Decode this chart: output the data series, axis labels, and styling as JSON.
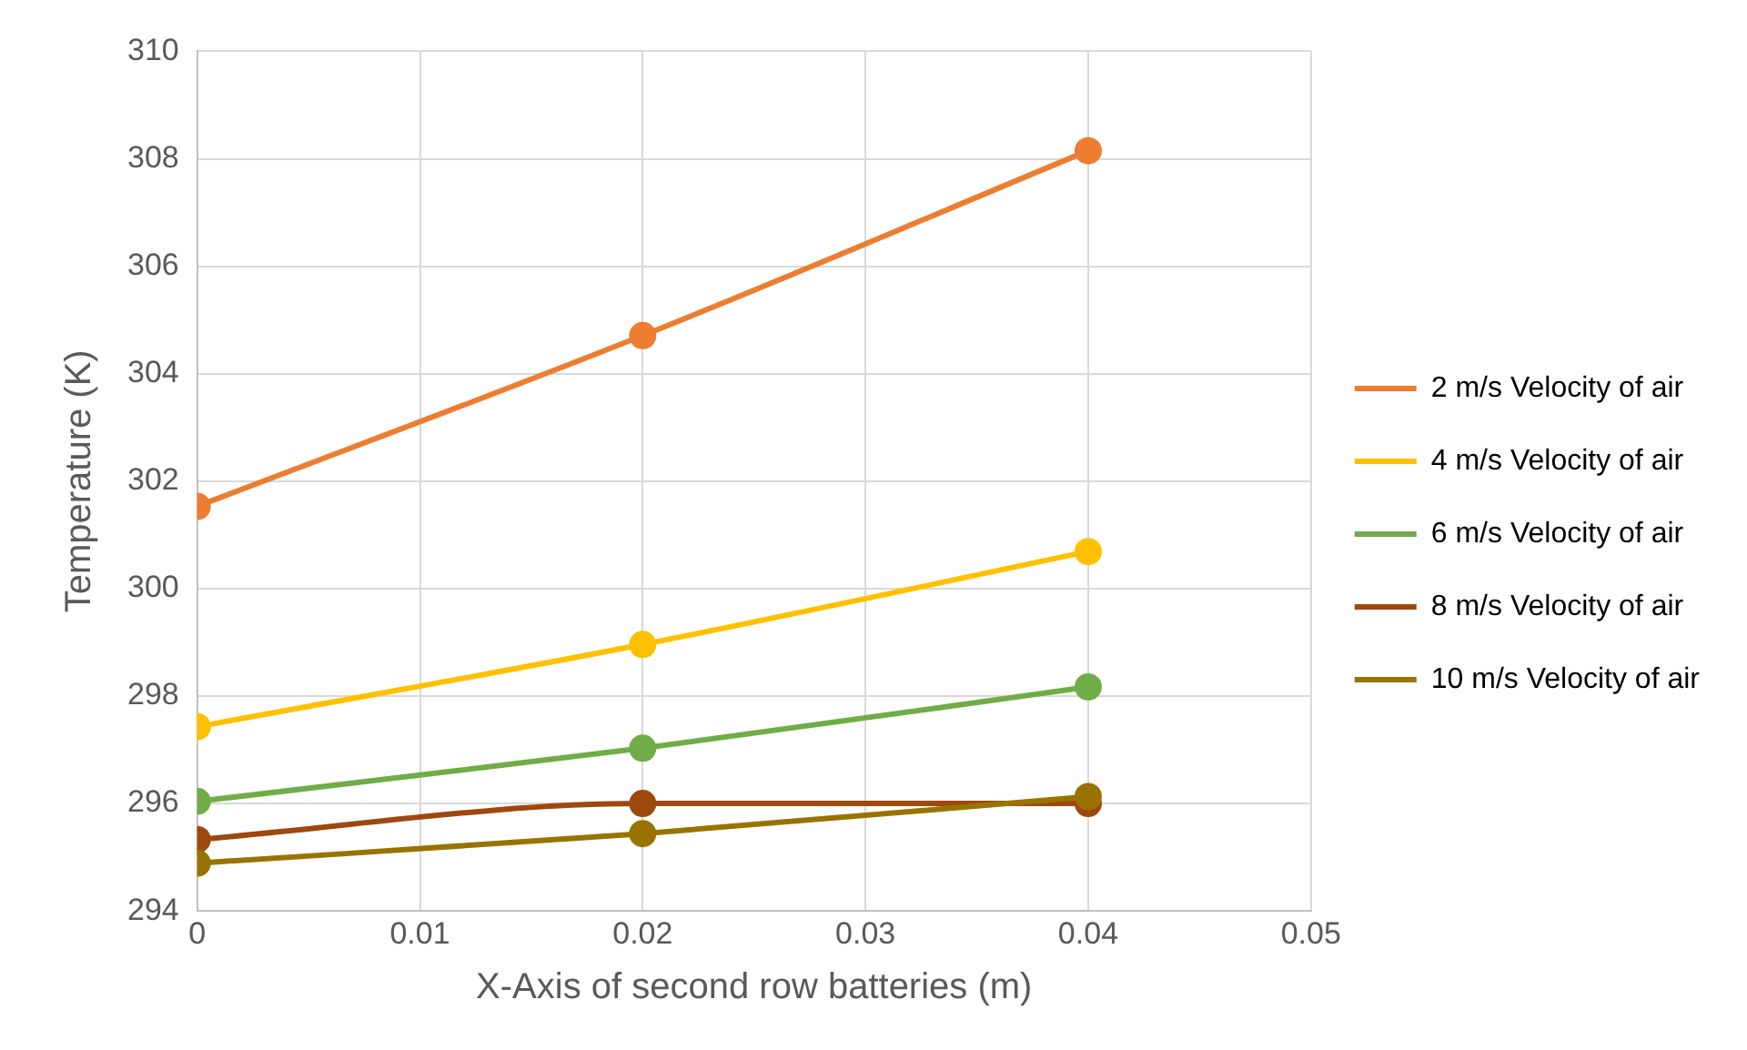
{
  "chart_data": {
    "type": "line",
    "xlabel": "X-Axis of second row batteries (m)",
    "ylabel": "Temperature (K)",
    "x": [
      0,
      0.02,
      0.04
    ],
    "series": [
      {
        "name": "2 m/s Velocity of air",
        "color": "#ed7d31",
        "values": [
          301.53,
          304.71,
          308.15
        ]
      },
      {
        "name": "4 m/s Velocity of air",
        "color": "#ffc000",
        "values": [
          297.43,
          298.96,
          300.69
        ]
      },
      {
        "name": "6 m/s Velocity of air",
        "color": "#70ad47",
        "values": [
          296.04,
          297.03,
          298.17
        ]
      },
      {
        "name": "8 m/s Velocity of air",
        "color": "#9e480e",
        "values": [
          295.33,
          296.0,
          296.0
        ]
      },
      {
        "name": "10 m/s Velocity of air",
        "color": "#997300",
        "values": [
          294.89,
          295.44,
          296.13
        ]
      }
    ],
    "xlim": [
      0,
      0.05
    ],
    "xticks": [
      0,
      0.01,
      0.02,
      0.03,
      0.04,
      0.05
    ],
    "ylim": [
      294,
      310
    ],
    "yticks": [
      294,
      296,
      298,
      300,
      302,
      304,
      306,
      308,
      310
    ],
    "grid": true,
    "legend": "right",
    "marker": "circle",
    "line_style": "solid"
  }
}
